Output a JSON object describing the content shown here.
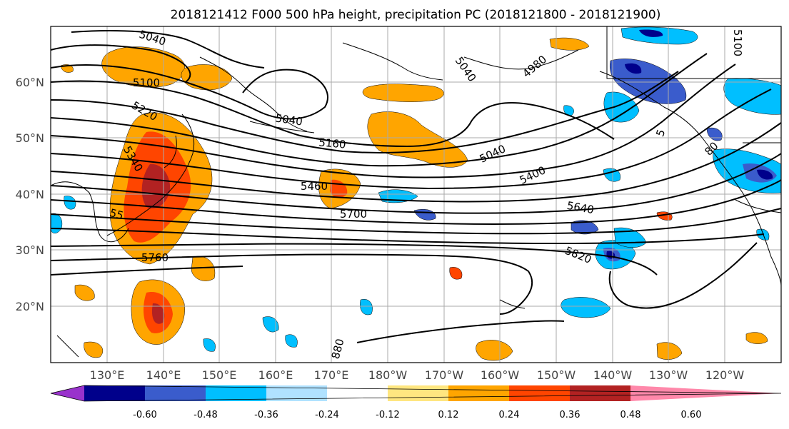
{
  "title": "2018121412 F000 500 hPa height, precipitation PC (2018121800 - 2018121900)",
  "lat_labels": [
    "60°N",
    "50°N",
    "40°N",
    "30°N",
    "20°N"
  ],
  "lon_labels": [
    "130°E",
    "140°E",
    "150°E",
    "160°E",
    "170°E",
    "180°W",
    "170°W",
    "160°W",
    "150°W",
    "140°W",
    "130°W",
    "120°W"
  ],
  "colorbar": {
    "colors": [
      "#9932cc",
      "#00008b",
      "#3a5ccc",
      "#00bfff",
      "#b0e2ff",
      "#ffffff",
      "#ffe680",
      "#ffa500",
      "#ff4500",
      "#b22222",
      "#ff88aa"
    ],
    "ticks": [
      "-0.60",
      "-0.48",
      "-0.36",
      "-0.24",
      "-0.12",
      "0.12",
      "0.24",
      "0.36",
      "0.48",
      "0.60"
    ]
  },
  "contour_labels": [
    "5040",
    "5100",
    "5220",
    "5340",
    "5040",
    "5040",
    "4980",
    "5160",
    "5460",
    "5700",
    "5400",
    "5040",
    "5640",
    "5820",
    "5760",
    "55",
    "880",
    "5100",
    "5",
    "80"
  ]
}
